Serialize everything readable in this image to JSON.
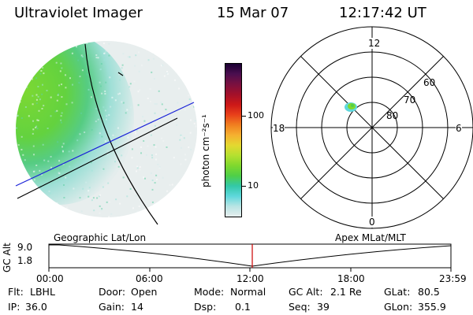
{
  "header": {
    "instrument": "Ultraviolet Imager",
    "date": "15 Mar 07",
    "time": "12:17:42 UT"
  },
  "colorbar": {
    "unit_label": "photon cm⁻²s⁻¹",
    "ticks": [
      "100",
      "10"
    ],
    "colors": [
      "#1a0033",
      "#4b0e4f",
      "#7a1040",
      "#a3102a",
      "#cc1818",
      "#e8401a",
      "#f07f20",
      "#f5b030",
      "#e4d830",
      "#b5e030",
      "#7fd82e",
      "#4fcf48",
      "#33c8a8",
      "#5fd8dc",
      "#b9e4e4",
      "#e6eeee"
    ]
  },
  "polar": {
    "mlt_labels": {
      "top": "12",
      "left": "18",
      "right": "6",
      "bottom": "0"
    },
    "lat_labels": [
      "60",
      "70",
      "80"
    ]
  },
  "timeline": {
    "y_axis_label": "GC Alt",
    "y_ticks": [
      "9.0",
      "1.8"
    ],
    "left_title": "Geographic Lat/Lon",
    "right_title": "Apex MLat/MLT",
    "x_ticks": [
      "00:00",
      "06:00",
      "12:00",
      "18:00",
      "23:59"
    ],
    "marker_color": "#cc0000"
  },
  "info": {
    "row1": {
      "flt_label": "Flt:",
      "flt_value": "LBHL",
      "door_label": "Door:",
      "door_value": "Open",
      "mode_label": "Mode:",
      "mode_value": "Normal",
      "gcalt_label": "GC Alt:",
      "gcalt_value": "2.1 Re",
      "glat_label": "GLat:",
      "glat_value": "80.5"
    },
    "row2": {
      "ip_label": "IP:",
      "ip_value": "36.0",
      "gain_label": "Gain:",
      "gain_value": "14",
      "dsp_label": "Dsp:",
      "dsp_value": "0.1",
      "seq_label": "Seq:",
      "seq_value": "39",
      "glon_label": "GLon:",
      "glon_value": "355.9"
    }
  }
}
